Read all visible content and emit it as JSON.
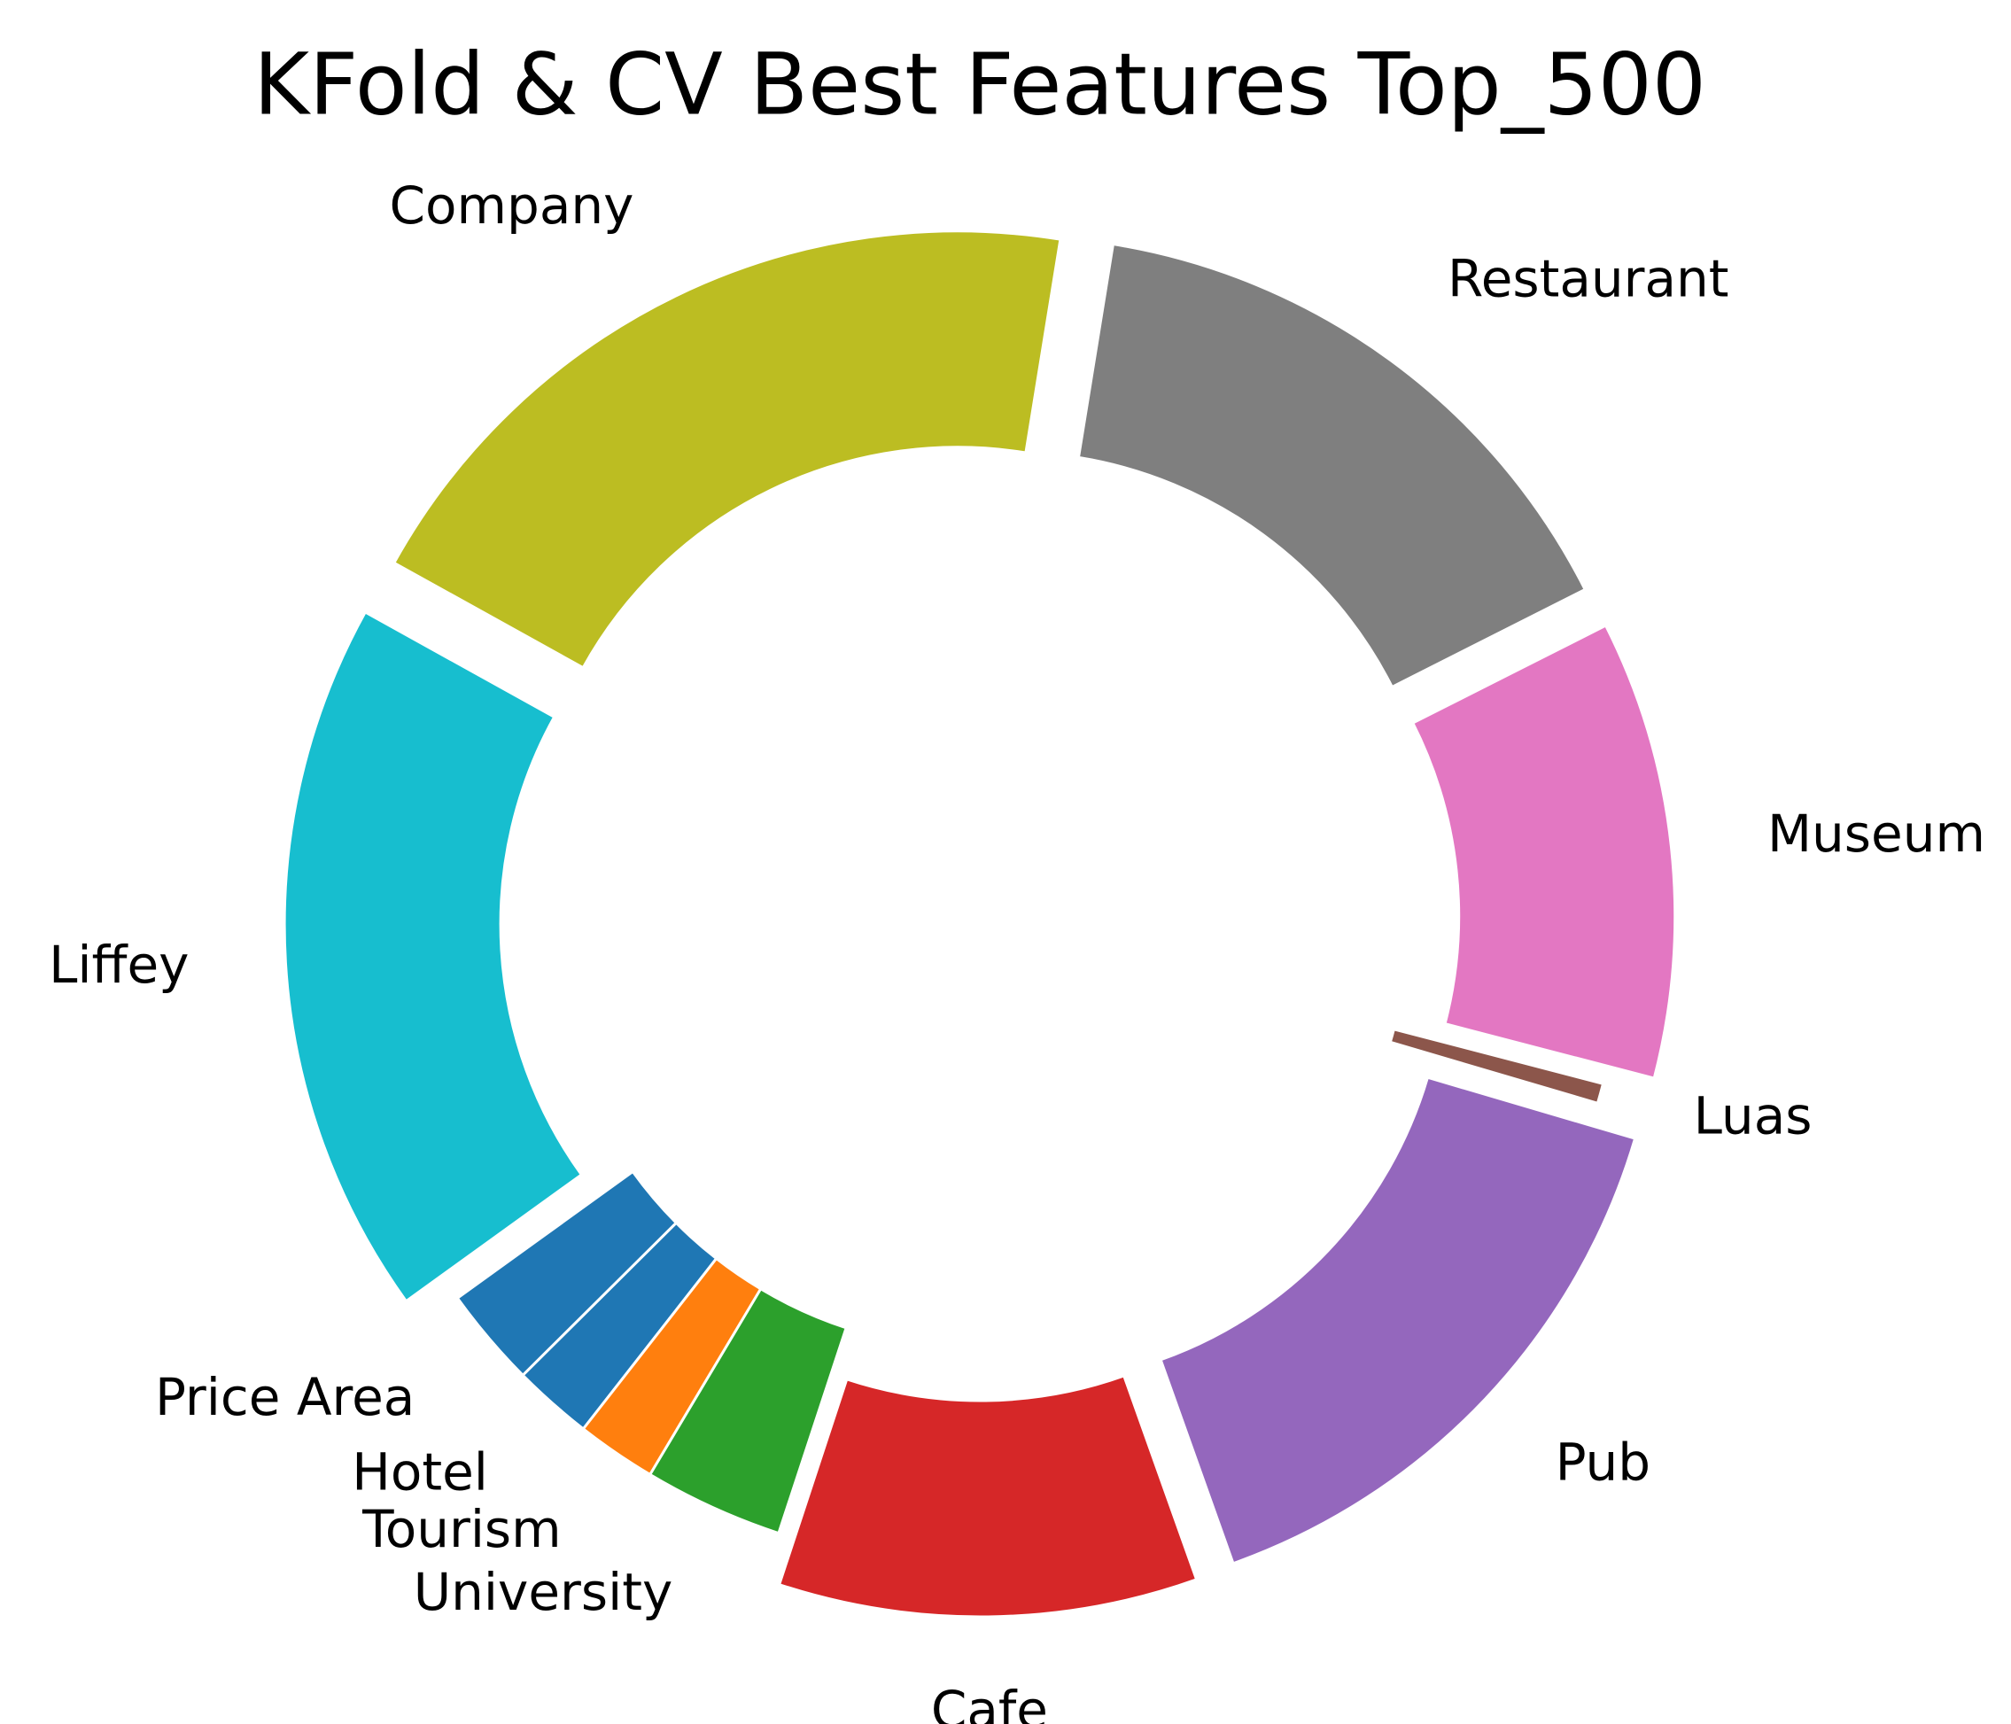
{
  "chart_data": {
    "type": "donut",
    "title": "KFold & CV Best Features Top_500",
    "categories": [
      "Hotel",
      "Tourism",
      "University",
      "Cafe",
      "Pub",
      "Luas",
      "Museum",
      "Restaurant",
      "Company",
      "Liffey",
      "Price Area"
    ],
    "values": [
      2,
      2,
      3.5,
      10.5,
      15,
      0.5,
      11.5,
      15,
      19.5,
      18,
      2.5
    ],
    "colors": [
      "#1f77b4",
      "#ff7f0e",
      "#2ca02c",
      "#d62728",
      "#9467bd",
      "#8c564b",
      "#e377c2",
      "#7f7f7f",
      "#bcbd22",
      "#17becf",
      "#1f77b4"
    ]
  }
}
